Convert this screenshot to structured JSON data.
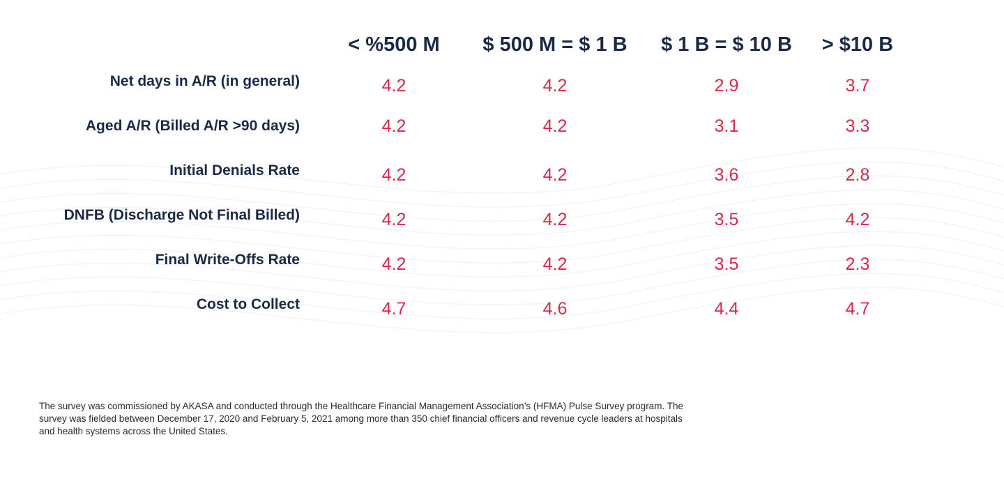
{
  "chart_data": {
    "type": "table",
    "columns": [
      "< %500 M",
      "$ 500 M = $ 1 B",
      "$ 1 B = $ 10 B",
      "> $10 B"
    ],
    "rows": [
      {
        "label": "Net days in A/R (in general)",
        "values": [
          "4.2",
          "4.2",
          "2.9",
          "3.7"
        ]
      },
      {
        "label": "Aged A/R (Billed A/R >90 days)",
        "values": [
          "4.2",
          "4.2",
          "3.1",
          "3.3"
        ]
      },
      {
        "label": "Initial Denials Rate",
        "values": [
          "4.2",
          "4.2",
          "3.6",
          "2.8"
        ]
      },
      {
        "label": "DNFB (Discharge Not Final Billed)",
        "values": [
          "4.2",
          "4.2",
          "3.5",
          "4.2"
        ]
      },
      {
        "label": "Final Write-Offs Rate",
        "values": [
          "4.2",
          "4.2",
          "3.5",
          "2.3"
        ]
      },
      {
        "label": "Cost to Collect",
        "values": [
          "4.7",
          "4.6",
          "4.4",
          "4.7"
        ]
      }
    ],
    "value_color": "#d8294a",
    "label_color": "#1b2a44"
  },
  "footnote": "The survey was commissioned by AKASA and conducted through the Healthcare Financial Management Association’s (HFMA) Pulse Survey program. The survey was fielded between December 17, 2020 and February 5, 2021 among more than 350 chief financial officers and revenue cycle leaders at hospitals and health systems across the United States."
}
